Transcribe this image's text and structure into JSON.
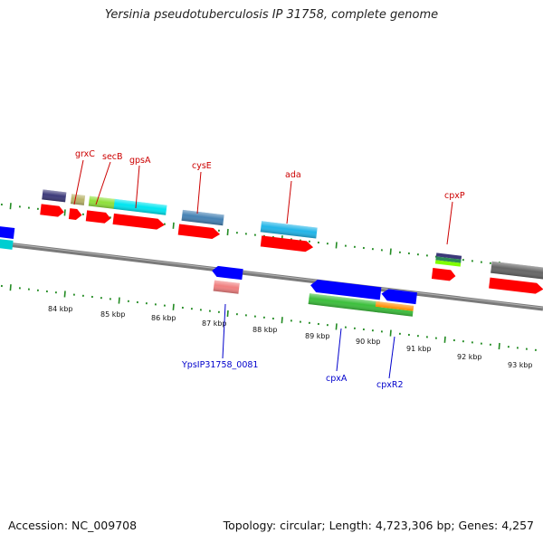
{
  "title": "Yersinia pseudotuberculosis IP 31758, complete genome",
  "accession_text": "Accession: NC_009708",
  "topology_text": "Topology: circular; Length: 4,723,306 bp; Genes: 4,257",
  "tick_labels": [
    "84 kbp",
    "85 kbp",
    "86 kbp",
    "87 kbp",
    "88 kbp",
    "89 kbp",
    "90 kbp",
    "91 kbp",
    "92 kbp",
    "93 kbp"
  ],
  "gene_labels": {
    "grxC": "grxC",
    "secB": "secB",
    "gpsA": "gpsA",
    "cysE": "cysE",
    "ada": "ada",
    "cpxP": "cpxP",
    "ypsIP": "YpsIP31758_0081",
    "cpxA": "cpxA",
    "cpxR2": "cpxR2"
  },
  "colors": {
    "backbone": "#808080",
    "cds_forward": "#ff0000",
    "cds_reverse": "#0000ff",
    "label_forward": "#cc0000",
    "label_reverse": "#0000cc",
    "tick": "#228b22"
  }
}
